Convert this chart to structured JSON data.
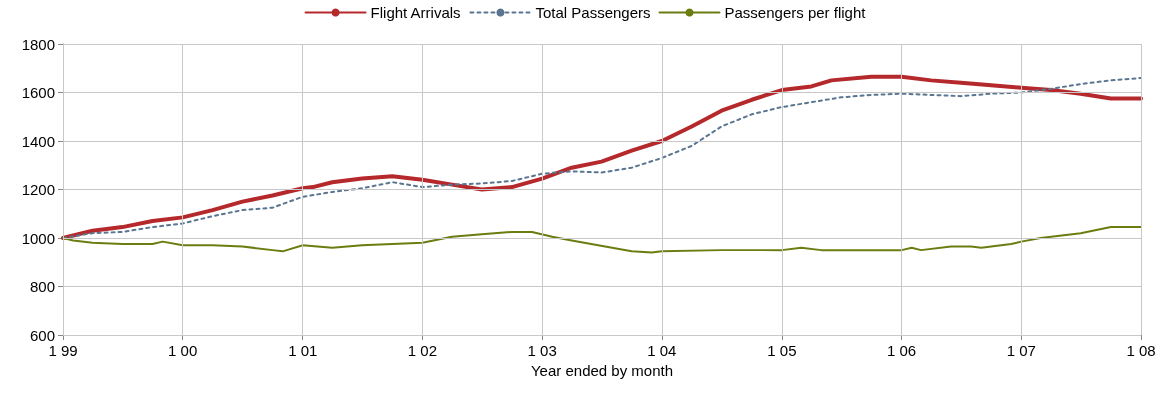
{
  "chart_data": {
    "type": "line",
    "xlabel": "Year ended by month",
    "legend": "top",
    "grid": true,
    "marker": "none",
    "xlim": [
      "1999-01",
      "2008-01"
    ],
    "xticks": [
      {
        "value": "1999-01",
        "label": "1 99"
      },
      {
        "value": "2000-01",
        "label": "1 00"
      },
      {
        "value": "2001-01",
        "label": "1 01"
      },
      {
        "value": "2002-01",
        "label": "1 02"
      },
      {
        "value": "2003-01",
        "label": "1 03"
      },
      {
        "value": "2004-01",
        "label": "1 04"
      },
      {
        "value": "2005-01",
        "label": "1 05"
      },
      {
        "value": "2006-01",
        "label": "1 06"
      },
      {
        "value": "2007-01",
        "label": "1 07"
      },
      {
        "value": "2008-01",
        "label": "1 08"
      }
    ],
    "ylim": [
      600,
      1800
    ],
    "yticks": [
      600,
      800,
      1000,
      1200,
      1400,
      1600,
      1800
    ],
    "series": [
      {
        "name": "Flight Arrivals",
        "color": "#b5282b",
        "line_style": "solid",
        "x": [
          "1999-01",
          "1999-04",
          "1999-07",
          "1999-10",
          "2000-01",
          "2000-04",
          "2000-07",
          "2000-10",
          "2001-01",
          "2001-02",
          "2001-04",
          "2001-07",
          "2001-10",
          "2002-01",
          "2002-04",
          "2002-07",
          "2002-10",
          "2003-01",
          "2003-04",
          "2003-07",
          "2003-10",
          "2004-01",
          "2004-04",
          "2004-07",
          "2004-10",
          "2005-01",
          "2005-04",
          "2005-06",
          "2005-10",
          "2006-01",
          "2006-04",
          "2006-07",
          "2006-10",
          "2007-01",
          "2007-04",
          "2007-07",
          "2007-10",
          "2008-01"
        ],
        "values": [
          1000,
          1030,
          1045,
          1070,
          1085,
          1115,
          1150,
          1175,
          1205,
          1210,
          1230,
          1245,
          1255,
          1240,
          1220,
          1200,
          1210,
          1245,
          1290,
          1315,
          1360,
          1400,
          1460,
          1525,
          1570,
          1610,
          1625,
          1650,
          1665,
          1665,
          1650,
          1640,
          1630,
          1620,
          1610,
          1595,
          1575,
          1575
        ]
      },
      {
        "name": "Total Passengers",
        "color": "#5a7590",
        "line_style": "dotted",
        "x": [
          "1999-01",
          "1999-04",
          "1999-07",
          "1999-10",
          "2000-01",
          "2000-04",
          "2000-07",
          "2000-10",
          "2001-01",
          "2001-04",
          "2001-07",
          "2001-10",
          "2002-01",
          "2002-04",
          "2002-07",
          "2002-10",
          "2003-01",
          "2003-04",
          "2003-07",
          "2003-10",
          "2004-01",
          "2004-04",
          "2004-07",
          "2004-10",
          "2005-01",
          "2005-04",
          "2005-07",
          "2005-10",
          "2006-01",
          "2006-04",
          "2006-07",
          "2006-10",
          "2007-01",
          "2007-04",
          "2007-07",
          "2007-10",
          "2008-01"
        ],
        "values": [
          1000,
          1020,
          1025,
          1045,
          1060,
          1090,
          1115,
          1125,
          1170,
          1190,
          1205,
          1230,
          1210,
          1220,
          1225,
          1235,
          1265,
          1275,
          1270,
          1290,
          1330,
          1380,
          1460,
          1510,
          1540,
          1560,
          1580,
          1590,
          1595,
          1590,
          1585,
          1595,
          1600,
          1615,
          1635,
          1650,
          1660
        ]
      },
      {
        "name": "Passengers per flight",
        "color": "#6b7d10",
        "line_style": "solid",
        "x": [
          "1999-01",
          "1999-02",
          "1999-04",
          "1999-07",
          "1999-10",
          "1999-11",
          "2000-01",
          "2000-04",
          "2000-07",
          "2000-10",
          "2000-11",
          "2001-01",
          "2001-04",
          "2001-07",
          "2001-10",
          "2002-01",
          "2002-04",
          "2002-07",
          "2002-10",
          "2002-12",
          "2003-02",
          "2003-04",
          "2003-10",
          "2003-12",
          "2004-01",
          "2004-07",
          "2005-01",
          "2005-03",
          "2005-05",
          "2006-01",
          "2006-02",
          "2006-03",
          "2006-06",
          "2006-08",
          "2006-09",
          "2006-12",
          "2007-01",
          "2007-03",
          "2007-07",
          "2007-10",
          "2008-01"
        ],
        "values": [
          1000,
          990,
          980,
          975,
          975,
          985,
          970,
          970,
          965,
          950,
          945,
          970,
          960,
          970,
          975,
          980,
          1005,
          1015,
          1025,
          1025,
          1005,
          990,
          945,
          940,
          945,
          950,
          950,
          960,
          950,
          950,
          960,
          950,
          965,
          965,
          960,
          975,
          985,
          1000,
          1020,
          1045,
          1045
        ]
      }
    ]
  }
}
